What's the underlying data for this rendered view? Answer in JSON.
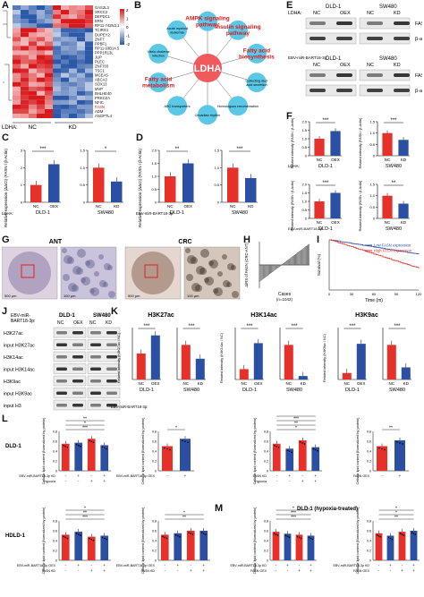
{
  "panel_labels": {
    "a": "A",
    "b": "B",
    "c": "C",
    "d": "D",
    "e": "E",
    "f": "F",
    "g": "G",
    "h": "H",
    "i": "I",
    "j": "J",
    "k": "K",
    "l": "L",
    "m": "M"
  },
  "colors": {
    "red": "#e8302b",
    "blue": "#2a4fa3",
    "pink": "#f05a5f",
    "cyan": "#5bc8e8",
    "heat_red": "#d7191c",
    "heat_blue": "#2b59a8"
  },
  "heatmap": {
    "genes": [
      "GAS2L3",
      "XRCC2",
      "DEPDC1",
      "ERN",
      "RP11-742N3.1",
      "TCIRG1",
      "DUPEY2",
      "ZNF7",
      "PPBF1",
      "RP11-93B14.5",
      "PPP1R13L",
      "JUP",
      "PLEC",
      "ZNF703",
      "TSC1",
      "MGEA5",
      "ABCA3",
      "SOX13",
      "MVP",
      "BHLHE40",
      "PRKCZA",
      "NFIC",
      "FASN",
      "ADM",
      "ANGPTL4"
    ],
    "highlight_gene": "FASN",
    "scale": [
      "2",
      "1",
      "0",
      "-1",
      "-2"
    ],
    "ldha_label": "LDHA:",
    "groups": [
      "NC",
      "KD"
    ]
  },
  "network": {
    "center": "LDHA",
    "nodes": [
      {
        "label": "AMPK signaling pathway",
        "style": "red"
      },
      {
        "label": "Insulin signaling pathway",
        "style": "red"
      },
      {
        "label": "Fatty acid biosynthesis",
        "style": "red"
      },
      {
        "label": "Collecting duct acid secretion",
        "style": "blue"
      },
      {
        "label": "Homologous recombination",
        "style": "blue"
      },
      {
        "label": "Circadian rhythm",
        "style": "blue"
      },
      {
        "label": "ABC transporters",
        "style": "blue"
      },
      {
        "label": "Fatty acid metabolism",
        "style": "red"
      },
      {
        "label": "Vibrio cholerae infection",
        "style": "blue"
      },
      {
        "label": "Acute myeloid leukemia",
        "style": "blue"
      }
    ]
  },
  "blots": {
    "ldha_label": "LDHA:",
    "ebv_label": "EBV-miR-BART18-3p:",
    "cell_lines": [
      "DLD-1",
      "SW480"
    ],
    "top": {
      "lanes": [
        "NC",
        "OEX",
        "NC",
        "KD"
      ],
      "rows": [
        "FASN",
        "β-actin"
      ]
    },
    "bottom": {
      "lanes": [
        "NC",
        "OEX",
        "NC",
        "KD"
      ],
      "rows": [
        "FASN",
        "β-actin"
      ]
    }
  },
  "panel_c": {
    "ylabel": "Relative expression (ΔΔCt) (FASN / β-Actin)",
    "charts": [
      {
        "cell": "DLD-1",
        "categories": [
          "NC",
          "OEX"
        ],
        "values": [
          1.0,
          2.2
        ],
        "sig": "***",
        "ylim": [
          0,
          3
        ],
        "ticks": [
          "0",
          "1",
          "2",
          "3"
        ]
      },
      {
        "cell": "SW480",
        "categories": [
          "NC",
          "KD"
        ],
        "values": [
          1.0,
          0.6
        ],
        "sig": "*",
        "ylim": [
          0,
          1.5
        ],
        "ticks": [
          "0",
          "0.5",
          "1.0",
          "1.5"
        ]
      }
    ],
    "xprefix": "LDHA:"
  },
  "panel_d": {
    "ylabel": "Relative expression (ΔΔCt) (FASN / β-Actin)",
    "charts": [
      {
        "cell": "DLD-1",
        "categories": [
          "NC",
          "OEX"
        ],
        "values": [
          1.0,
          1.5
        ],
        "sig": "**",
        "ylim": [
          0,
          2
        ],
        "ticks": [
          "0",
          "0.5",
          "1.0",
          "1.5",
          "2.0"
        ]
      },
      {
        "cell": "SW480",
        "categories": [
          "NC",
          "KD"
        ],
        "values": [
          1.0,
          0.7
        ],
        "sig": "***",
        "ylim": [
          0,
          1.5
        ],
        "ticks": [
          "0",
          "0.5",
          "1.0",
          "1.5"
        ]
      }
    ],
    "xprefix": "EBV-miR-BART18-3p:"
  },
  "panel_f": {
    "ylabel": "Related intensity (FASN / β-Actin)",
    "charts": [
      {
        "cell": "DLD-1",
        "categories": [
          "NC",
          "OEX"
        ],
        "values": [
          1.0,
          1.45
        ],
        "sig": "***",
        "ylim": [
          0,
          2
        ],
        "ticks": [
          "0",
          "0.5",
          "1.0",
          "1.5",
          "2.0"
        ]
      },
      {
        "cell": "SW480",
        "categories": [
          "NC",
          "KD"
        ],
        "values": [
          1.0,
          0.7
        ],
        "sig": "***",
        "ylim": [
          0,
          1.5
        ],
        "ticks": [
          "0",
          "0.5",
          "1.0",
          "1.5"
        ]
      },
      {
        "cell": "DLD-1",
        "categories": [
          "NC",
          "OEX"
        ],
        "values": [
          1.0,
          1.5
        ],
        "sig": "***",
        "ylim": [
          0,
          2
        ],
        "ticks": [
          "0",
          "0.5",
          "1.0",
          "1.5",
          "2.0"
        ]
      },
      {
        "cell": "SW480",
        "categories": [
          "NC",
          "KD"
        ],
        "values": [
          1.0,
          0.65
        ],
        "sig": "**",
        "ylim": [
          0,
          1.5
        ],
        "ticks": [
          "0",
          "0.5",
          "1.0",
          "1.5"
        ]
      }
    ],
    "prefix_top": "LDHA:",
    "prefix_bottom": "EBV-miR-BART18-3p:"
  },
  "panel_g": {
    "ant": "ANT",
    "crc": "CRC",
    "scalebars": [
      "500 μm",
      "100 μm",
      "500 μm",
      "100 μm"
    ]
  },
  "panel_h": {
    "ylabel": "ΔIRS of FASN (CRC-ANT)",
    "xlabel": "Cases",
    "n": "(n=1042)",
    "ticks": [
      "0",
      "250",
      "500",
      "750",
      "1000"
    ],
    "yticks": [
      "-10",
      "-5",
      "0",
      "5",
      "10"
    ]
  },
  "panel_i": {
    "ylabel": "Survival (%)",
    "xlabel": "Time (m)",
    "legend": [
      "Low FASN expression",
      "High FASN expression"
    ],
    "xticks": [
      "0",
      "30",
      "60",
      "90",
      "120"
    ],
    "yticks": [
      "0",
      "20",
      "40",
      "60",
      "80",
      "100"
    ]
  },
  "panel_j": {
    "header_left": "EBV-miR-",
    "header_left2": "BART18-3p:",
    "lanes": [
      "NC",
      "OEX",
      "NC",
      "KD"
    ],
    "cells": [
      "DLD-1",
      "SW480"
    ],
    "rows": [
      "H3K27ac",
      "input H3K27ac",
      "H3K14ac",
      "input H3K14ac",
      "H3K9ac",
      "input H3K9ac",
      "input H3"
    ]
  },
  "panel_k": {
    "groups": [
      {
        "title": "H3K27ac",
        "ylabel": "Related intensity (H3K27ac / NC)",
        "charts": [
          {
            "cell": "DLD-1",
            "categories": [
              "NC",
              "OEX"
            ],
            "values": [
              1.0,
              1.7
            ],
            "sig": "***",
            "ylim": [
              0,
              2
            ]
          },
          {
            "cell": "SW480",
            "categories": [
              "NC",
              "KD"
            ],
            "values": [
              1.0,
              0.6
            ],
            "sig": "***",
            "ylim": [
              0,
              1.5
            ]
          }
        ]
      },
      {
        "title": "H3K14ac",
        "ylabel": "Related intensity (H3K14ac / NC)",
        "charts": [
          {
            "cell": "DLD-1",
            "categories": [
              "NC",
              "OEX"
            ],
            "values": [
              1.0,
              3.5
            ],
            "sig": "***",
            "ylim": [
              0,
              5
            ]
          },
          {
            "cell": "SW480",
            "categories": [
              "NC",
              "KD"
            ],
            "values": [
              1.0,
              0.1
            ],
            "sig": "***",
            "ylim": [
              0,
              1.5
            ]
          }
        ]
      },
      {
        "title": "H3K9ac",
        "ylabel": "Related intensity (H3K9ac / NC)",
        "charts": [
          {
            "cell": "DLD-1",
            "categories": [
              "NC",
              "OEX"
            ],
            "values": [
              1.0,
              5.5
            ],
            "sig": "***",
            "ylim": [
              0,
              8
            ]
          },
          {
            "cell": "SW480",
            "categories": [
              "NC",
              "KD"
            ],
            "values": [
              1.0,
              0.35
            ],
            "sig": "***",
            "ylim": [
              0,
              1.5
            ]
          }
        ]
      }
    ],
    "prefix": "EBV-miR-BART18-3p:"
  },
  "panel_l": {
    "ylabel": "Cellular lipid content (Normalized by protein)",
    "row_labels": [
      "DLD-1",
      "HDLD-1"
    ],
    "charts": [
      {
        "values": [
          0.55,
          0.57,
          0.65,
          0.52
        ],
        "colors": [
          "red",
          "blue",
          "red",
          "blue"
        ],
        "ylim": [
          0,
          0.8
        ],
        "sigs": [
          "***",
          "*",
          "**"
        ],
        "xrows": [
          {
            "label": "EBV-miR-BART18-3p KD",
            "marks": [
              "-",
              "+",
              "-",
              "+"
            ]
          },
          {
            "label": "Hypoxia",
            "marks": [
              "-",
              "-",
              "+",
              "+"
            ]
          }
        ]
      },
      {
        "values": [
          0.5,
          0.65
        ],
        "colors": [
          "red",
          "blue"
        ],
        "ylim": [
          0,
          0.8
        ],
        "sigs": [
          "*"
        ],
        "xrows": [
          {
            "label": "EBV-miR-BART18-3p OEX",
            "marks": [
              "-",
              "+"
            ]
          }
        ]
      },
      {
        "values": [
          0.55,
          0.45,
          0.62,
          0.48
        ],
        "colors": [
          "red",
          "blue",
          "red",
          "blue"
        ],
        "ylim": [
          0,
          0.8
        ],
        "sigs": [
          "*",
          "**",
          "***",
          "**"
        ],
        "xrows": [
          {
            "label": "FASN KD",
            "marks": [
              "-",
              "+",
              "-",
              "+"
            ]
          },
          {
            "label": "Hypoxia",
            "marks": [
              "-",
              "-",
              "+",
              "+"
            ]
          }
        ]
      },
      {
        "values": [
          0.5,
          0.62
        ],
        "colors": [
          "red",
          "blue"
        ],
        "ylim": [
          0,
          0.8
        ],
        "sigs": [
          "**"
        ],
        "xrows": [
          {
            "label": "FASN OEX",
            "marks": [
              "-",
              "+"
            ]
          }
        ]
      },
      {
        "values": [
          0.52,
          0.58,
          0.48,
          0.5
        ],
        "colors": [
          "red",
          "blue",
          "red",
          "blue"
        ],
        "ylim": [
          0,
          0.8
        ],
        "sigs": [
          "***",
          "**",
          "*"
        ],
        "xrows": [
          {
            "label": "EBV-miR-BART18-3p OEX",
            "marks": [
              "-",
              "+",
              "-",
              "+"
            ]
          },
          {
            "label": "FASN KD",
            "marks": [
              "-",
              "-",
              "+",
              "+"
            ]
          }
        ]
      },
      {
        "values": [
          0.52,
          0.55,
          0.6,
          0.6
        ],
        "colors": [
          "red",
          "blue",
          "red",
          "blue"
        ],
        "ylim": [
          0,
          0.8
        ],
        "sigs": [
          "**",
          "*"
        ],
        "xrows": [
          {
            "label": "EBV-miR-BART18-3p OEX",
            "marks": [
              "-",
              "+",
              "-",
              "+"
            ]
          },
          {
            "label": "FASN KD",
            "marks": [
              "-",
              "-",
              "+",
              "+"
            ]
          }
        ]
      }
    ]
  },
  "panel_m": {
    "title": "DLD-1 (hypoxia-treated)",
    "ylabel": "Cellular lipid content (Normalized by protein)",
    "charts": [
      {
        "values": [
          0.58,
          0.54,
          0.52,
          0.5
        ],
        "colors": [
          "red",
          "blue",
          "red",
          "blue"
        ],
        "ylim": [
          0,
          0.8
        ],
        "sigs": [
          "***",
          "***",
          "*"
        ],
        "xrows": [
          {
            "label": "EBV-miR-BART18-3p KD",
            "marks": [
              "-",
              "+",
              "-",
              "+"
            ]
          },
          {
            "label": "FASN OEX",
            "marks": [
              "-",
              "-",
              "+",
              "+"
            ]
          }
        ]
      },
      {
        "values": [
          0.55,
          0.5,
          0.58,
          0.6
        ],
        "colors": [
          "red",
          "blue",
          "red",
          "blue"
        ],
        "ylim": [
          0,
          0.8
        ],
        "sigs": [
          "**",
          "*",
          "*"
        ],
        "xrows": [
          {
            "label": "EBV-miR-BART18-3p KD",
            "marks": [
              "-",
              "+",
              "-",
              "+"
            ]
          },
          {
            "label": "FASN OEX",
            "marks": [
              "-",
              "-",
              "+",
              "+"
            ]
          }
        ]
      }
    ]
  }
}
